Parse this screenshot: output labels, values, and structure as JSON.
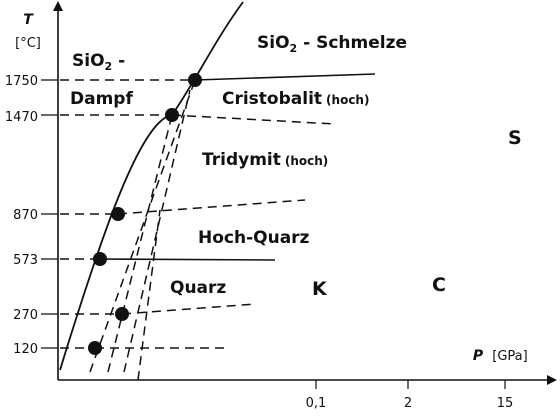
{
  "y_axis": {
    "title": "T",
    "unit": "[°C]",
    "ticks": [
      "1750",
      "1470",
      "870",
      "573",
      "270",
      "120"
    ]
  },
  "x_axis": {
    "title": "P",
    "unit": "[GPa]",
    "ticks": [
      "0,1",
      "2",
      "15"
    ]
  },
  "regions": {
    "vapor_1": "SiO",
    "vapor_sub": "2",
    "vapor_2": " -",
    "vapor_3": "Dampf",
    "melt_1": "SiO",
    "melt_sub": "2",
    "melt_2": " - Schmelze",
    "cristobalit": "Cristobalit",
    "cristobalit_note": "(hoch)",
    "tridymit": "Tridymit",
    "tridymit_note": "(hoch)",
    "hoch_quarz": "Hoch-Quarz",
    "quarz": "Quarz"
  },
  "high_pressure_labels": [
    "K",
    "C",
    "S"
  ]
}
